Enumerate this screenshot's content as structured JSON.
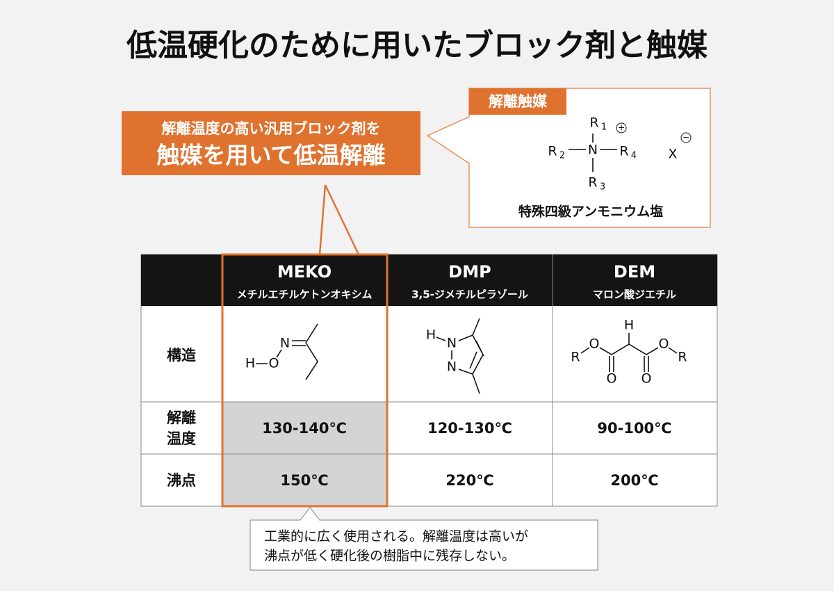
{
  "title": "低温硬化のために用いたブロック剤と触媒",
  "callout": {
    "lines": [
      "解離温度の高い汎用ブロック剤を",
      "触媒を用いて低温解離"
    ]
  },
  "catalyst": {
    "label": "解離触媒",
    "atoms": [
      {
        "symbol": "R",
        "sub": "1"
      },
      {
        "symbol": "R",
        "sub": "2"
      },
      {
        "symbol": "N",
        "sub": ""
      },
      {
        "symbol": "R",
        "sub": "4"
      },
      {
        "symbol": "R",
        "sub": "3"
      },
      {
        "symbol": "X",
        "sub": ""
      }
    ],
    "charges": [
      "+",
      "−"
    ],
    "caption": "特殊四級アンモニウム塩"
  },
  "table": {
    "header": [
      {
        "name": "MEKO",
        "subname": "メチルエチルケトンオキシム"
      },
      {
        "name": "DMP",
        "subname": "3,5-ジメチルピラゾール"
      },
      {
        "name": "DEM",
        "subname": "マロン酸ジエチル"
      }
    ],
    "row_labels": [
      [
        "構造"
      ],
      [
        "解離",
        "温度"
      ],
      [
        "沸点"
      ]
    ],
    "structures": [
      [
        "N",
        "H",
        "O"
      ],
      [
        "H",
        "N",
        "N"
      ],
      [
        "H",
        "R",
        "O",
        "O",
        "O",
        "O",
        "R"
      ]
    ],
    "rows": [
      [
        "130-140℃",
        "120-130℃",
        "90-100℃"
      ],
      [
        "150℃",
        "220℃",
        "200℃"
      ]
    ]
  },
  "note": {
    "lines": [
      "工業的に広く使用される。解離温度は高いが",
      "沸点が低く硬化後の樹脂中に残存しない。"
    ]
  }
}
